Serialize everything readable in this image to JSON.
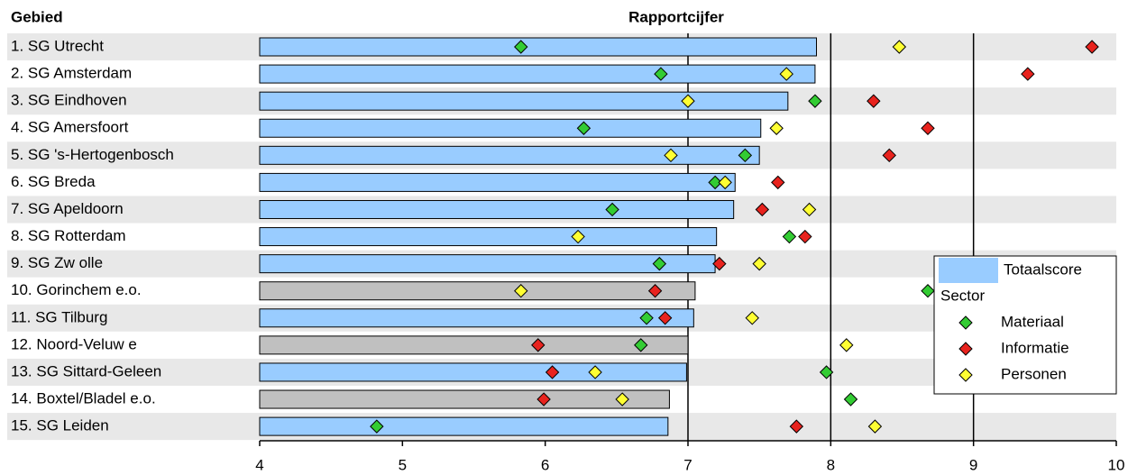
{
  "chart_data": {
    "type": "bar",
    "y_label": "Gebied",
    "x_label": "Rapportcijfer",
    "categories": [
      "1. SG Utrecht",
      "2. SG Amsterdam",
      "3. SG Eindhoven",
      "4. SG Amersfoort",
      "5. SG 's-Hertogenbosch",
      "6. SG Breda",
      "7. SG Apeldoorn",
      "8. SG Rotterdam",
      "9. SG Zw olle",
      "10. Gorinchem e.o.",
      "11. SG Tilburg",
      "12. Noord-Veluw e",
      "13. SG Sittard-Geleen",
      "14. Boxtel/Bladel e.o.",
      "15. SG Leiden"
    ],
    "series": [
      {
        "name": "Totaalscore",
        "kind": "bar",
        "color": "#99ccff",
        "colors": [
          "#99ccff",
          "#99ccff",
          "#99ccff",
          "#99ccff",
          "#99ccff",
          "#99ccff",
          "#99ccff",
          "#99ccff",
          "#99ccff",
          "#c0c0c0",
          "#99ccff",
          "#c0c0c0",
          "#99ccff",
          "#c0c0c0",
          "#99ccff"
        ],
        "values": [
          7.9,
          7.89,
          7.7,
          7.51,
          7.5,
          7.33,
          7.32,
          7.2,
          7.19,
          7.05,
          7.04,
          7.0,
          6.99,
          6.87,
          6.86
        ]
      },
      {
        "name": "Materiaal",
        "kind": "marker",
        "color": "#33cc33",
        "values": [
          5.83,
          6.81,
          7.89,
          6.27,
          7.4,
          7.19,
          6.47,
          7.71,
          6.8,
          8.68,
          6.71,
          6.67,
          7.97,
          8.14,
          4.82
        ]
      },
      {
        "name": "Informatie",
        "kind": "marker",
        "color": "#e8231e",
        "values": [
          9.83,
          9.38,
          8.3,
          8.68,
          8.41,
          7.63,
          7.52,
          7.82,
          7.22,
          6.77,
          6.84,
          5.95,
          6.05,
          5.99,
          7.76
        ]
      },
      {
        "name": "Personen",
        "kind": "marker",
        "color": "#ffff33",
        "values": [
          8.48,
          7.69,
          7.0,
          7.62,
          6.88,
          7.26,
          7.85,
          6.23,
          7.5,
          5.83,
          7.45,
          8.11,
          6.35,
          6.54,
          8.31
        ]
      }
    ],
    "legend_group_title": "Sector",
    "legend": "right",
    "xlim": [
      4,
      10
    ],
    "xticks": [
      4,
      5,
      6,
      7,
      8,
      9,
      10
    ],
    "xgrid": [
      7,
      8,
      9
    ],
    "band_color": "#e8e8e8"
  }
}
